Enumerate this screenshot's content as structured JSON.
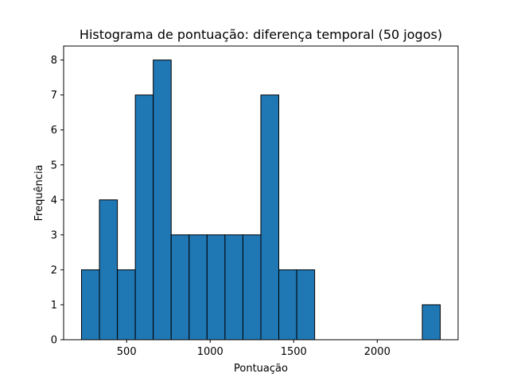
{
  "chart_data": {
    "type": "bar",
    "title": "Histograma de pontuação: diferença temporal (50 jogos)",
    "xlabel": "Pontuação",
    "ylabel": "Frequência",
    "bar_color": "#1f77b4",
    "edge_color": "#000000",
    "bins": {
      "edges": [
        230,
        337.35,
        444.7,
        552.05,
        659.4,
        766.75,
        874.1,
        981.45,
        1088.8,
        1196.15,
        1303.5,
        1410.85,
        1518.2,
        1625.55,
        1732.9,
        1840.25,
        1947.6,
        2054.95,
        2162.3,
        2269.65,
        2377
      ],
      "counts": [
        2,
        4,
        2,
        7,
        8,
        3,
        3,
        3,
        3,
        3,
        7,
        2,
        2,
        0,
        0,
        0,
        0,
        0,
        0,
        1
      ]
    },
    "xlim": [
      123,
      2484
    ],
    "ylim": [
      0,
      8.4
    ],
    "x_ticks": [
      500,
      1000,
      1500,
      2000
    ],
    "x_tick_labels": [
      "500",
      "1000",
      "1500",
      "2000"
    ],
    "y_ticks": [
      0,
      1,
      2,
      3,
      4,
      5,
      6,
      7,
      8
    ],
    "y_tick_labels": [
      "0",
      "1",
      "2",
      "3",
      "4",
      "5",
      "6",
      "7",
      "8"
    ],
    "grid": false,
    "legend": false
  }
}
